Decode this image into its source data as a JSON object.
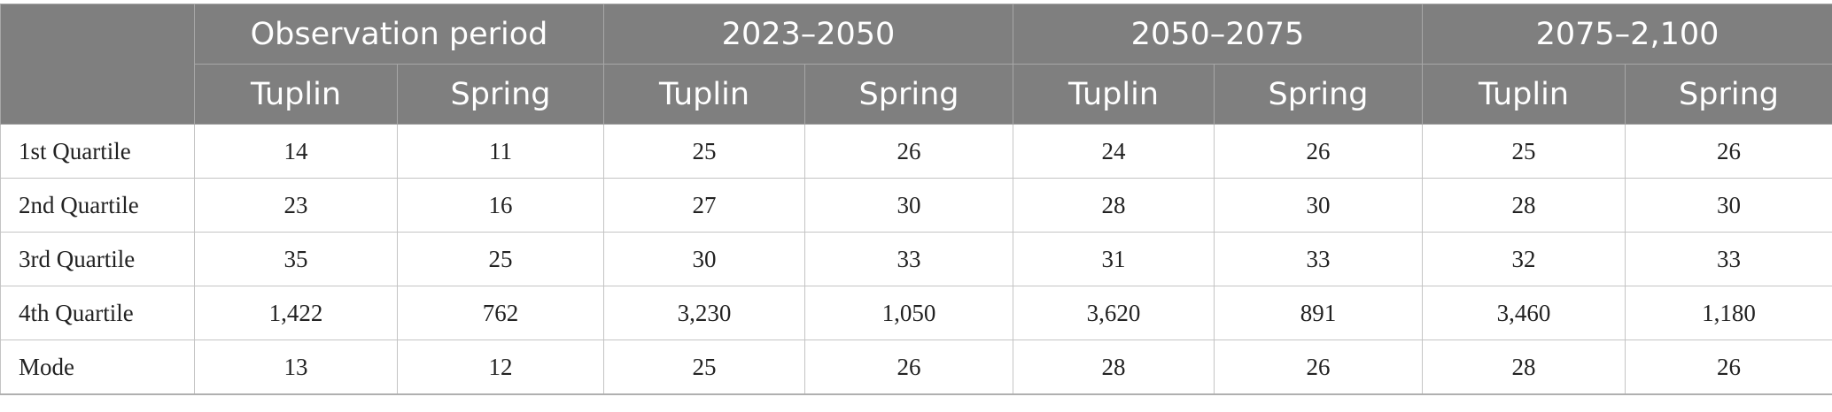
{
  "table": {
    "header_groups": [
      {
        "label": ""
      },
      {
        "label": "Observation period"
      },
      {
        "label": "2023–2050"
      },
      {
        "label": "2050–2075"
      },
      {
        "label": "2075–2,100"
      }
    ],
    "subheaders": [
      "Tuplin",
      "Spring",
      "Tuplin",
      "Spring",
      "Tuplin",
      "Spring",
      "Tuplin",
      "Spring"
    ],
    "rows": [
      {
        "label": "1st Quartile",
        "values": [
          "14",
          "11",
          "25",
          "26",
          "24",
          "26",
          "25",
          "26"
        ]
      },
      {
        "label": "2nd Quartile",
        "values": [
          "23",
          "16",
          "27",
          "30",
          "28",
          "30",
          "28",
          "30"
        ]
      },
      {
        "label": "3rd Quartile",
        "values": [
          "35",
          "25",
          "30",
          "33",
          "31",
          "33",
          "32",
          "33"
        ]
      },
      {
        "label": "4th Quartile",
        "values": [
          "1,422",
          "762",
          "3,230",
          "1,050",
          "3,620",
          "891",
          "3,460",
          "1,180"
        ]
      },
      {
        "label": "Mode",
        "values": [
          "13",
          "12",
          "25",
          "26",
          "28",
          "26",
          "28",
          "26"
        ]
      }
    ]
  },
  "colors": {
    "header_bg": "#7f7f7f",
    "header_text": "#ffffff",
    "cell_border": "#c4c4c4",
    "body_text": "#222222"
  }
}
